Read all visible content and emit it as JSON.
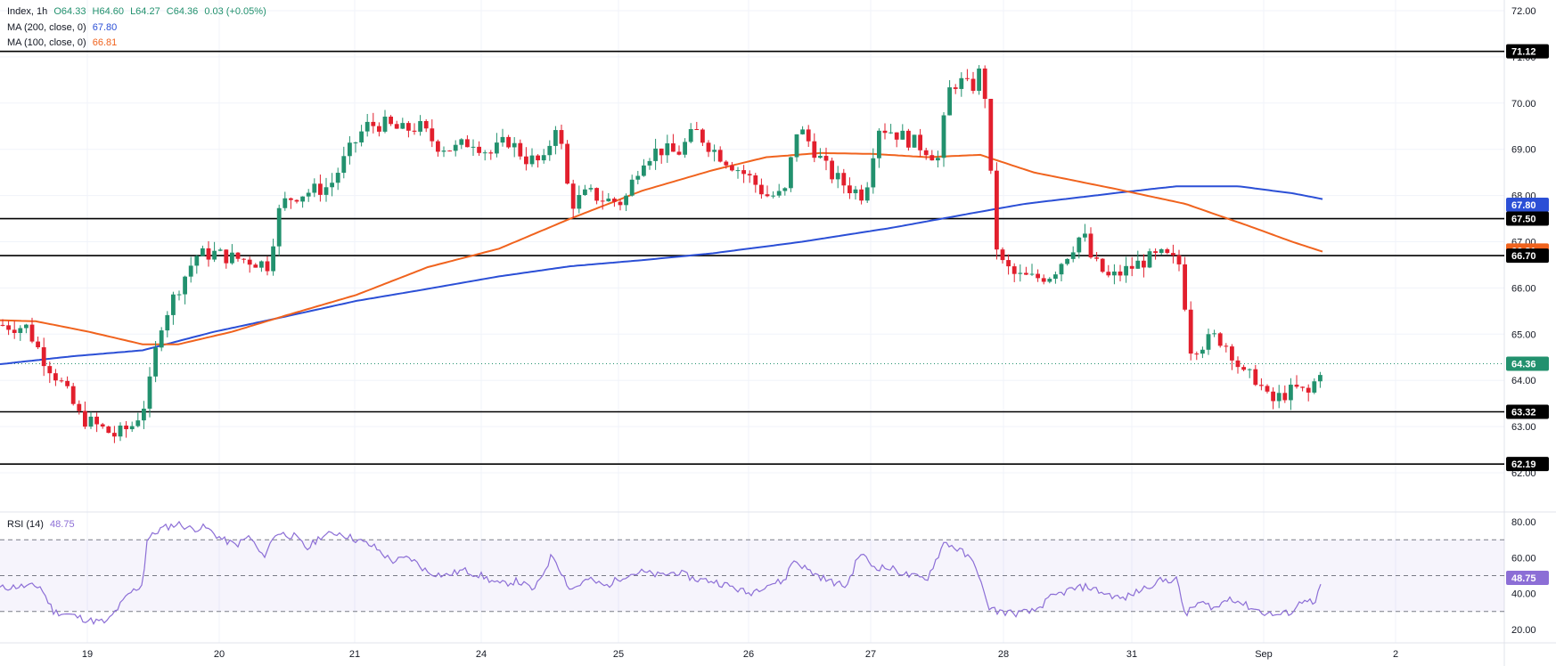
{
  "header": {
    "symbol": "Index",
    "interval": "1h",
    "ohlc": {
      "open": "O64.33",
      "high": "H64.60",
      "low": "L64.27",
      "close": "C64.36",
      "change": "0.03 (+0.05%)"
    },
    "ma200": {
      "label": "MA (200, close, 0)",
      "value": "67.80",
      "color": "#2b4fd6"
    },
    "ma100": {
      "label": "MA (100, close, 0)",
      "value": "66.81",
      "color": "#f0631e"
    }
  },
  "rsi_header": {
    "label": "RSI (14)",
    "value": "48.75",
    "color": "#8c6ed6"
  },
  "colors": {
    "up": "#22916e",
    "down": "#e21f2d",
    "ma200": "#2b4fd6",
    "ma100": "#f0631e",
    "rsi": "#8c6ed6",
    "grid": "#f0f3fa",
    "hline": "#000000"
  },
  "chart_data": [
    {
      "type": "candlestick",
      "title": "",
      "interval": "1h",
      "x_ticks": [
        "19",
        "20",
        "21",
        "24",
        "25",
        "26",
        "27",
        "28",
        "31",
        "Sep",
        "2"
      ],
      "ylim": [
        62.0,
        72.0
      ],
      "y_ticks": [
        "62.00",
        "63.00",
        "64.00",
        "65.00",
        "66.00",
        "67.00",
        "68.00",
        "69.00",
        "70.00",
        "71.00",
        "72.00"
      ],
      "last_price": "64.36",
      "horizontal_levels": [
        "71.12",
        "67.50",
        "66.70",
        "63.32",
        "62.19"
      ],
      "series": [
        {
          "name": "MA (200, close, 0)",
          "last_value": "67.80",
          "anchors": [
            [
              0,
              64.35
            ],
            [
              80,
              64.52
            ],
            [
              160,
              64.65
            ],
            [
              240,
              65.05
            ],
            [
              320,
              65.38
            ],
            [
              400,
              65.72
            ],
            [
              480,
              65.98
            ],
            [
              560,
              66.25
            ],
            [
              640,
              66.47
            ],
            [
              720,
              66.6
            ],
            [
              800,
              66.75
            ],
            [
              900,
              67.0
            ],
            [
              1000,
              67.3
            ],
            [
              1100,
              67.65
            ],
            [
              1150,
              67.82
            ],
            [
              1250,
              68.05
            ],
            [
              1320,
              68.2
            ],
            [
              1390,
              68.2
            ],
            [
              1450,
              68.05
            ],
            [
              1485,
              67.92
            ]
          ]
        },
        {
          "name": "MA (100, close, 0)",
          "last_value": "66.81",
          "anchors": [
            [
              0,
              65.3
            ],
            [
              40,
              65.28
            ],
            [
              100,
              65.05
            ],
            [
              160,
              64.78
            ],
            [
              200,
              64.78
            ],
            [
              260,
              65.05
            ],
            [
              320,
              65.4
            ],
            [
              400,
              65.85
            ],
            [
              480,
              66.45
            ],
            [
              560,
              66.85
            ],
            [
              640,
              67.5
            ],
            [
              720,
              68.1
            ],
            [
              800,
              68.55
            ],
            [
              860,
              68.83
            ],
            [
              920,
              68.92
            ],
            [
              980,
              68.9
            ],
            [
              1040,
              68.83
            ],
            [
              1100,
              68.88
            ],
            [
              1160,
              68.5
            ],
            [
              1250,
              68.15
            ],
            [
              1330,
              67.82
            ],
            [
              1400,
              67.35
            ],
            [
              1450,
              67.0
            ],
            [
              1485,
              66.78
            ]
          ]
        }
      ],
      "price_path": [
        [
          0,
          65.2
        ],
        [
          30,
          65.15
        ],
        [
          48,
          64.5
        ],
        [
          70,
          63.9
        ],
        [
          90,
          63.2
        ],
        [
          110,
          63.0
        ],
        [
          130,
          62.8
        ],
        [
          150,
          63.05
        ],
        [
          165,
          63.6
        ],
        [
          180,
          65.2
        ],
        [
          200,
          66.0
        ],
        [
          220,
          66.7
        ],
        [
          240,
          66.75
        ],
        [
          260,
          66.65
        ],
        [
          280,
          66.6
        ],
        [
          300,
          66.5
        ],
        [
          315,
          67.8
        ],
        [
          330,
          68.0
        ],
        [
          350,
          68.1
        ],
        [
          370,
          68.2
        ],
        [
          390,
          68.9
        ],
        [
          410,
          69.5
        ],
        [
          430,
          69.55
        ],
        [
          450,
          69.4
        ],
        [
          470,
          69.5
        ],
        [
          490,
          69.1
        ],
        [
          510,
          69.0
        ],
        [
          530,
          69.2
        ],
        [
          550,
          68.9
        ],
        [
          570,
          69.2
        ],
        [
          590,
          68.8
        ],
        [
          610,
          68.7
        ],
        [
          625,
          69.65
        ],
        [
          640,
          67.8
        ],
        [
          660,
          68.05
        ],
        [
          680,
          67.9
        ],
        [
          700,
          67.85
        ],
        [
          720,
          68.8
        ],
        [
          740,
          69.0
        ],
        [
          760,
          68.9
        ],
        [
          780,
          69.4
        ],
        [
          800,
          69.0
        ],
        [
          820,
          68.7
        ],
        [
          840,
          68.4
        ],
        [
          860,
          68.0
        ],
        [
          880,
          68.0
        ],
        [
          895,
          69.5
        ],
        [
          910,
          69.1
        ],
        [
          930,
          68.5
        ],
        [
          950,
          68.2
        ],
        [
          970,
          68.0
        ],
        [
          985,
          69.5
        ],
        [
          1000,
          69.4
        ],
        [
          1020,
          69.2
        ],
        [
          1040,
          69.0
        ],
        [
          1055,
          68.75
        ],
        [
          1062,
          70.2
        ],
        [
          1075,
          70.5
        ],
        [
          1090,
          70.3
        ],
        [
          1100,
          70.7
        ],
        [
          1108,
          69.9
        ],
        [
          1113,
          67.9
        ],
        [
          1120,
          66.6
        ],
        [
          1140,
          66.25
        ],
        [
          1160,
          66.2
        ],
        [
          1180,
          66.3
        ],
        [
          1200,
          66.8
        ],
        [
          1215,
          67.2
        ],
        [
          1225,
          66.6
        ],
        [
          1245,
          66.2
        ],
        [
          1265,
          66.4
        ],
        [
          1285,
          66.6
        ],
        [
          1305,
          66.7
        ],
        [
          1325,
          66.5
        ],
        [
          1335,
          64.7
        ],
        [
          1350,
          64.8
        ],
        [
          1365,
          64.95
        ],
        [
          1380,
          64.7
        ],
        [
          1395,
          64.1
        ],
        [
          1410,
          64.05
        ],
        [
          1425,
          63.5
        ],
        [
          1440,
          63.7
        ],
        [
          1455,
          63.8
        ],
        [
          1468,
          63.7
        ],
        [
          1476,
          64.0
        ],
        [
          1484,
          64.36
        ]
      ]
    },
    {
      "type": "line",
      "title": "",
      "indicator": "RSI (14)",
      "last_value": "48.75",
      "ylim": [
        15,
        85
      ],
      "y_ticks": [
        "20.00",
        "40.00",
        "60.00",
        "80.00"
      ],
      "bands": [
        30,
        50,
        70
      ],
      "x": [
        0,
        20,
        45,
        60,
        80,
        100,
        120,
        145,
        160,
        165,
        180,
        200,
        215,
        230,
        250,
        265,
        280,
        295,
        310,
        330,
        345,
        360,
        380,
        400,
        420,
        440,
        460,
        480,
        500,
        520,
        540,
        560,
        580,
        600,
        620,
        640,
        660,
        680,
        700,
        720,
        740,
        760,
        780,
        800,
        820,
        840,
        860,
        880,
        890,
        910,
        930,
        950,
        965,
        980,
        1000,
        1020,
        1040,
        1060,
        1080,
        1095,
        1108,
        1120,
        1140,
        1160,
        1180,
        1200,
        1220,
        1240,
        1260,
        1280,
        1300,
        1320,
        1330,
        1345,
        1365,
        1380,
        1400,
        1420,
        1435,
        1450,
        1465,
        1475,
        1484
      ],
      "values": [
        43,
        44,
        44,
        30,
        28,
        25,
        24,
        40,
        45,
        70,
        76,
        79,
        76,
        77,
        70,
        67,
        72,
        60,
        74,
        72,
        65,
        72,
        74,
        70,
        66,
        58,
        60,
        52,
        50,
        53,
        50,
        45,
        47,
        42,
        62,
        42,
        48,
        44,
        50,
        52,
        50,
        52,
        48,
        47,
        44,
        40,
        45,
        47,
        59,
        52,
        47,
        44,
        63,
        55,
        54,
        50,
        48,
        69,
        63,
        56,
        33,
        30,
        29,
        30,
        38,
        42,
        44,
        40,
        37,
        42,
        47,
        48,
        28,
        35,
        32,
        38,
        33,
        29,
        28,
        30,
        38,
        33,
        48.75
      ]
    }
  ]
}
